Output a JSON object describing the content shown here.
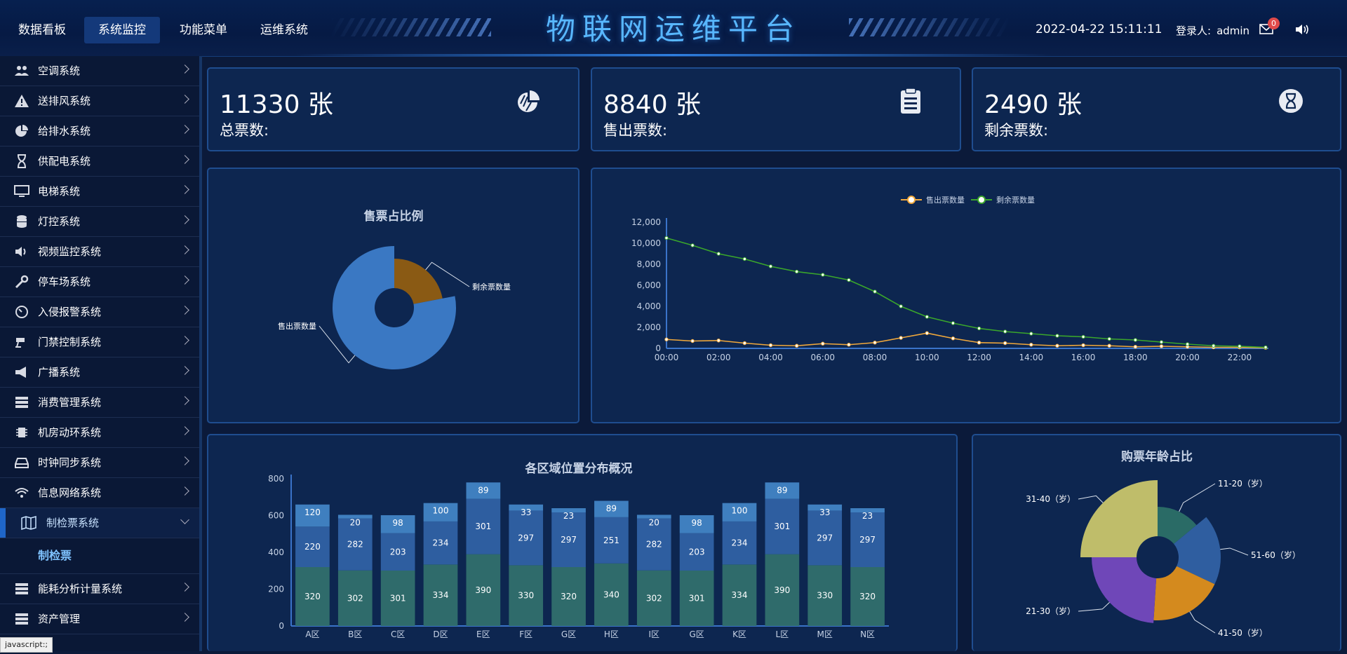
{
  "header": {
    "nav": [
      {
        "label": "数据看板"
      },
      {
        "label": "系统监控"
      },
      {
        "label": "功能菜单"
      },
      {
        "label": "运维系统"
      }
    ],
    "title": "物联网运维平台",
    "datetime": "2022-04-22 15:11:11",
    "login_label": "登录人:",
    "user": "admin",
    "mail_count": "0"
  },
  "sidebar": {
    "items": [
      {
        "label": "空调系统",
        "icon": "users-icon"
      },
      {
        "label": "送排风系统",
        "icon": "warning-icon"
      },
      {
        "label": "给排水系统",
        "icon": "pie-icon"
      },
      {
        "label": "供配电系统",
        "icon": "hourglass-icon"
      },
      {
        "label": "电梯系统",
        "icon": "monitor-icon"
      },
      {
        "label": "灯控系统",
        "icon": "database-icon"
      },
      {
        "label": "视频监控系统",
        "icon": "volume-icon"
      },
      {
        "label": "停车场系统",
        "icon": "wrench-icon"
      },
      {
        "label": "入侵报警系统",
        "icon": "dashboard-icon"
      },
      {
        "label": "门禁控制系统",
        "icon": "camera-icon"
      },
      {
        "label": "广播系统",
        "icon": "bullhorn-icon"
      },
      {
        "label": "消费管理系统",
        "icon": "server-icon"
      },
      {
        "label": "机房动环系统",
        "icon": "chip-icon"
      },
      {
        "label": "时钟同步系统",
        "icon": "hdd-icon"
      },
      {
        "label": "信息网络系统",
        "icon": "wifi-icon"
      },
      {
        "label": "制检票系统",
        "icon": "map-icon"
      },
      {
        "label": "能耗分析计量系统",
        "icon": "server-icon"
      },
      {
        "label": "资产管理",
        "icon": "server-icon"
      }
    ],
    "active_sub": "制检票",
    "status_tooltip": "javascript:;"
  },
  "stats": [
    {
      "value": "11330 张",
      "label": "总票数:",
      "icon": "pie-chart-icon"
    },
    {
      "value": "8840 张",
      "label": "售出票数:",
      "icon": "clipboard-icon"
    },
    {
      "value": "2490 张",
      "label": "剩余票数:",
      "icon": "hourglass-icon"
    }
  ],
  "colors": {
    "sold": "#3a78c3",
    "remain": "#8a5a14",
    "line_sold": "#f2a93b",
    "line_remain": "#3aa62b"
  },
  "chart_data": [
    {
      "type": "pie",
      "title": "售票占比例",
      "labels": [
        "售出票数量",
        "剩余票数量"
      ],
      "values": [
        8840,
        2490
      ]
    },
    {
      "type": "line",
      "legend": [
        "售出票数量",
        "剩余票数量"
      ],
      "x": [
        "00:00",
        "01:00",
        "02:00",
        "03:00",
        "04:00",
        "05:00",
        "06:00",
        "07:00",
        "08:00",
        "09:00",
        "10:00",
        "11:00",
        "12:00",
        "13:00",
        "14:00",
        "15:00",
        "16:00",
        "17:00",
        "18:00",
        "19:00",
        "20:00",
        "21:00",
        "22:00",
        "23:00"
      ],
      "xticks": [
        "00:00",
        "02:00",
        "04:00",
        "06:00",
        "08:00",
        "10:00",
        "12:00",
        "14:00",
        "16:00",
        "18:00",
        "20:00",
        "22:00"
      ],
      "yticks": [
        "0",
        "2,000",
        "4,000",
        "6,000",
        "8,000",
        "10,000",
        "12,000"
      ],
      "ylim": [
        0,
        12000
      ],
      "series": [
        {
          "name": "售出票数量",
          "values": [
            850,
            700,
            750,
            500,
            300,
            250,
            450,
            350,
            550,
            1000,
            1450,
            950,
            550,
            500,
            350,
            250,
            300,
            250,
            150,
            200,
            150,
            100,
            100,
            50
          ]
        },
        {
          "name": "剩余票数量",
          "values": [
            10500,
            9800,
            9000,
            8500,
            7800,
            7300,
            7000,
            6500,
            5400,
            4000,
            3000,
            2400,
            1900,
            1600,
            1400,
            1200,
            1100,
            900,
            800,
            600,
            400,
            250,
            200,
            100
          ]
        }
      ]
    },
    {
      "type": "bar",
      "title": "各区域位置分布概况",
      "categories": [
        "A区",
        "B区",
        "C区",
        "D区",
        "E区",
        "F区",
        "G区",
        "H区",
        "I区",
        "G区",
        "K区",
        "L区",
        "M区",
        "N区"
      ],
      "ylim": [
        0,
        800
      ],
      "yticks": [
        "0",
        "200",
        "400",
        "600",
        "800"
      ],
      "series": [
        {
          "name": "bottom",
          "values": [
            320,
            302,
            301,
            334,
            390,
            330,
            320,
            340,
            302,
            301,
            334,
            390,
            330,
            320
          ]
        },
        {
          "name": "middle",
          "values": [
            220,
            282,
            203,
            234,
            301,
            297,
            297,
            251,
            282,
            203,
            234,
            301,
            297,
            297
          ]
        },
        {
          "name": "top",
          "values": [
            120,
            20,
            98,
            100,
            89,
            33,
            23,
            89,
            20,
            98,
            100,
            89,
            33,
            23
          ]
        }
      ]
    },
    {
      "type": "pie",
      "title": "购票年龄占比",
      "labels": [
        "11-20（岁）",
        "51-60（岁）",
        "41-50（岁）",
        "21-30（岁）",
        "31-40（岁）"
      ],
      "values": [
        14,
        18,
        19,
        24,
        25
      ]
    }
  ]
}
